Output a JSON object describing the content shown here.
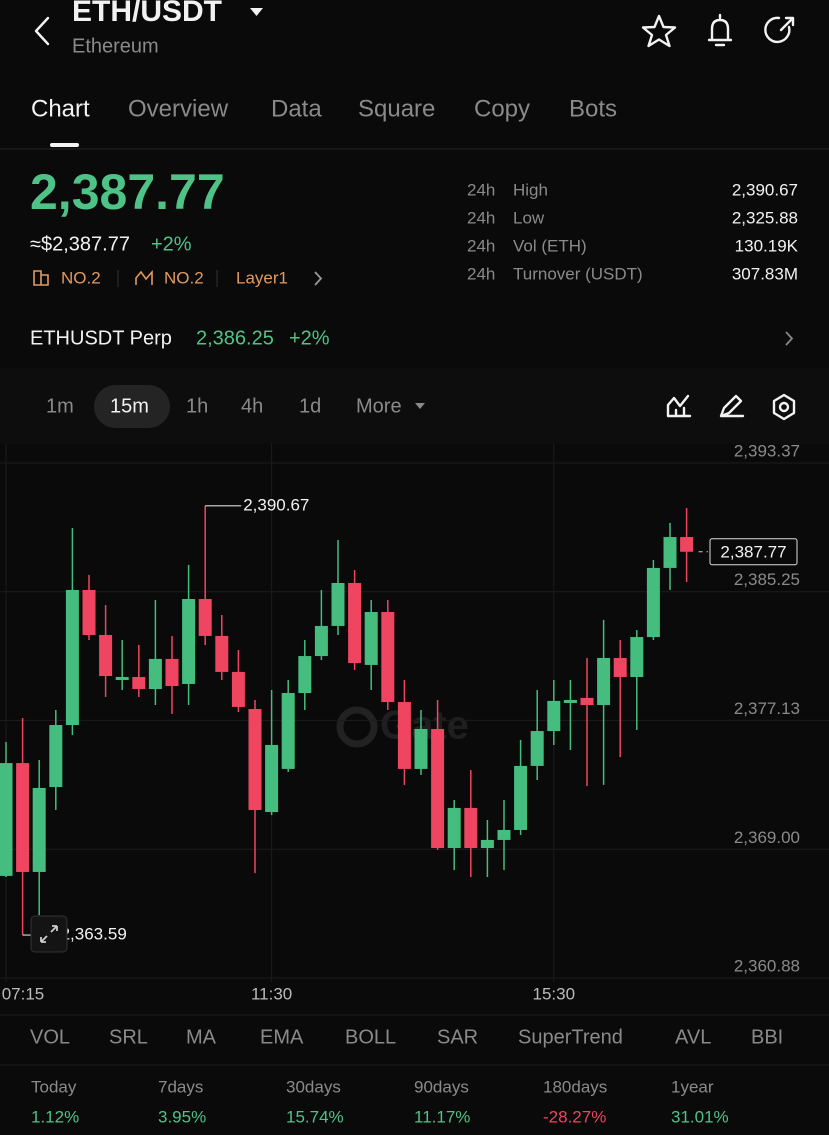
{
  "header": {
    "pair": "ETH/USDT",
    "name": "Ethereum"
  },
  "tabs": [
    "Chart",
    "Overview",
    "Data",
    "Square",
    "Copy",
    "Bots"
  ],
  "price": {
    "last": "2,387.77",
    "approx": "≈$2,387.77",
    "change": "+2%"
  },
  "badges": [
    "NO.2",
    "NO.2",
    "Layer1"
  ],
  "stats": [
    {
      "period": "24h",
      "label": "High",
      "value": "2,390.67"
    },
    {
      "period": "24h",
      "label": "Low",
      "value": "2,325.88"
    },
    {
      "period": "24h",
      "label": "Vol (ETH)",
      "value": "130.19K"
    },
    {
      "period": "24h",
      "label": "Turnover (USDT)",
      "value": "307.83M"
    }
  ],
  "perp": {
    "name": "ETHUSDT Perp",
    "price": "2,386.25",
    "change": "+2%"
  },
  "intervals": [
    "1m",
    "15m",
    "1h",
    "4h",
    "1d",
    "More"
  ],
  "chart_data": {
    "type": "candlestick",
    "categories": [
      "07:15",
      null,
      null,
      null,
      null,
      null,
      null,
      null,
      null,
      null,
      null,
      null,
      null,
      null,
      null,
      null,
      "11:30",
      null,
      null,
      null,
      null,
      null,
      null,
      null,
      null,
      null,
      null,
      null,
      null,
      null,
      null,
      null,
      null,
      "15:30",
      null,
      null,
      null,
      null,
      null,
      null,
      null,
      null
    ],
    "open": [
      2367.32,
      2374.44,
      2367.57,
      2372.93,
      2376.84,
      2385.36,
      2382.52,
      2379.68,
      2379.87,
      2379.11,
      2381.01,
      2379.43,
      2384.79,
      2382.46,
      2380.19,
      2377.85,
      2371.35,
      2374.07,
      2378.86,
      2381.19,
      2383.09,
      2385.8,
      2380.63,
      2383.97,
      2378.29,
      2374.07,
      2376.59,
      2369.08,
      2371.61,
      2369.08,
      2369.59,
      2370.22,
      2374.26,
      2376.46,
      2378.23,
      2378.55,
      2378.1,
      2381.07,
      2379.87,
      2382.39,
      2386.75,
      2388.7
    ],
    "high": [
      2375.77,
      2377.28,
      2374.63,
      2377.79,
      2389.27,
      2386.31,
      2384.41,
      2382.2,
      2381.89,
      2384.73,
      2382.46,
      2386.94,
      2390.67,
      2383.78,
      2381.57,
      2378.42,
      2379.05,
      2379.68,
      2382.2,
      2385.36,
      2388.51,
      2386.62,
      2384.73,
      2384.73,
      2379.68,
      2377.79,
      2378.42,
      2372.11,
      2374.0,
      2370.85,
      2372.11,
      2375.9,
      2379.05,
      2379.68,
      2379.68,
      2381.07,
      2383.47,
      2382.2,
      2382.83,
      2387.25,
      2389.59,
      2390.53
    ],
    "low": [
      2367.25,
      2363.59,
      2364.85,
      2371.48,
      2376.21,
      2382.2,
      2378.61,
      2379.05,
      2378.61,
      2378.1,
      2377.54,
      2378.1,
      2381.89,
      2379.68,
      2377.66,
      2367.5,
      2371.16,
      2373.88,
      2377.79,
      2380.94,
      2382.52,
      2380.31,
      2379.05,
      2377.79,
      2373.06,
      2373.69,
      2368.96,
      2367.69,
      2367.25,
      2367.25,
      2367.69,
      2369.9,
      2373.37,
      2375.58,
      2375.26,
      2372.99,
      2373.06,
      2374.82,
      2376.53,
      2382.2,
      2385.36,
      2385.86
    ],
    "close": [
      2374.44,
      2367.57,
      2372.87,
      2376.84,
      2385.36,
      2382.52,
      2379.93,
      2379.87,
      2379.11,
      2381.01,
      2379.3,
      2384.79,
      2382.46,
      2380.19,
      2377.98,
      2371.48,
      2375.58,
      2378.86,
      2381.19,
      2383.09,
      2385.8,
      2380.75,
      2383.97,
      2378.29,
      2374.07,
      2376.59,
      2369.08,
      2371.61,
      2369.08,
      2369.59,
      2370.22,
      2374.26,
      2376.46,
      2378.36,
      2378.42,
      2378.1,
      2381.07,
      2379.87,
      2382.39,
      2386.75,
      2388.7,
      2387.77
    ],
    "up_color": "#45bd7e",
    "down_color": "#ef4560",
    "ylim": [
      2360.88,
      2393.37
    ],
    "yticks": [
      {
        "value": 2360.88,
        "label": "2,360.88"
      },
      {
        "value": 2369.0,
        "label": "2,369.00"
      },
      {
        "value": 2377.13,
        "label": "2,377.13"
      },
      {
        "value": 2385.25,
        "label": "2,385.25"
      },
      {
        "value": 2393.37,
        "label": "2,393.37"
      }
    ],
    "grid": true,
    "watermark": "Gate",
    "annotations": [
      {
        "value": 2390.67,
        "label": "2,390.67"
      },
      {
        "value": 2363.59,
        "label": "2,363.59"
      }
    ],
    "last_price": {
      "value": 2387.77,
      "label": "2,387.77"
    }
  },
  "indicators": [
    "VOL",
    "SRL",
    "MA",
    "EMA",
    "BOLL",
    "SAR",
    "SuperTrend",
    "AVL",
    "BBI"
  ],
  "returns": [
    {
      "period": "Today",
      "value": "1.12%",
      "color": "#4fc287"
    },
    {
      "period": "7days",
      "value": "3.95%",
      "color": "#4fc287"
    },
    {
      "period": "30days",
      "value": "15.74%",
      "color": "#4fc287"
    },
    {
      "period": "90days",
      "value": "11.17%",
      "color": "#4fc287"
    },
    {
      "period": "180days",
      "value": "-28.27%",
      "color": "#ef4560"
    },
    {
      "period": "1year",
      "value": "31.01%",
      "color": "#4fc287"
    }
  ]
}
